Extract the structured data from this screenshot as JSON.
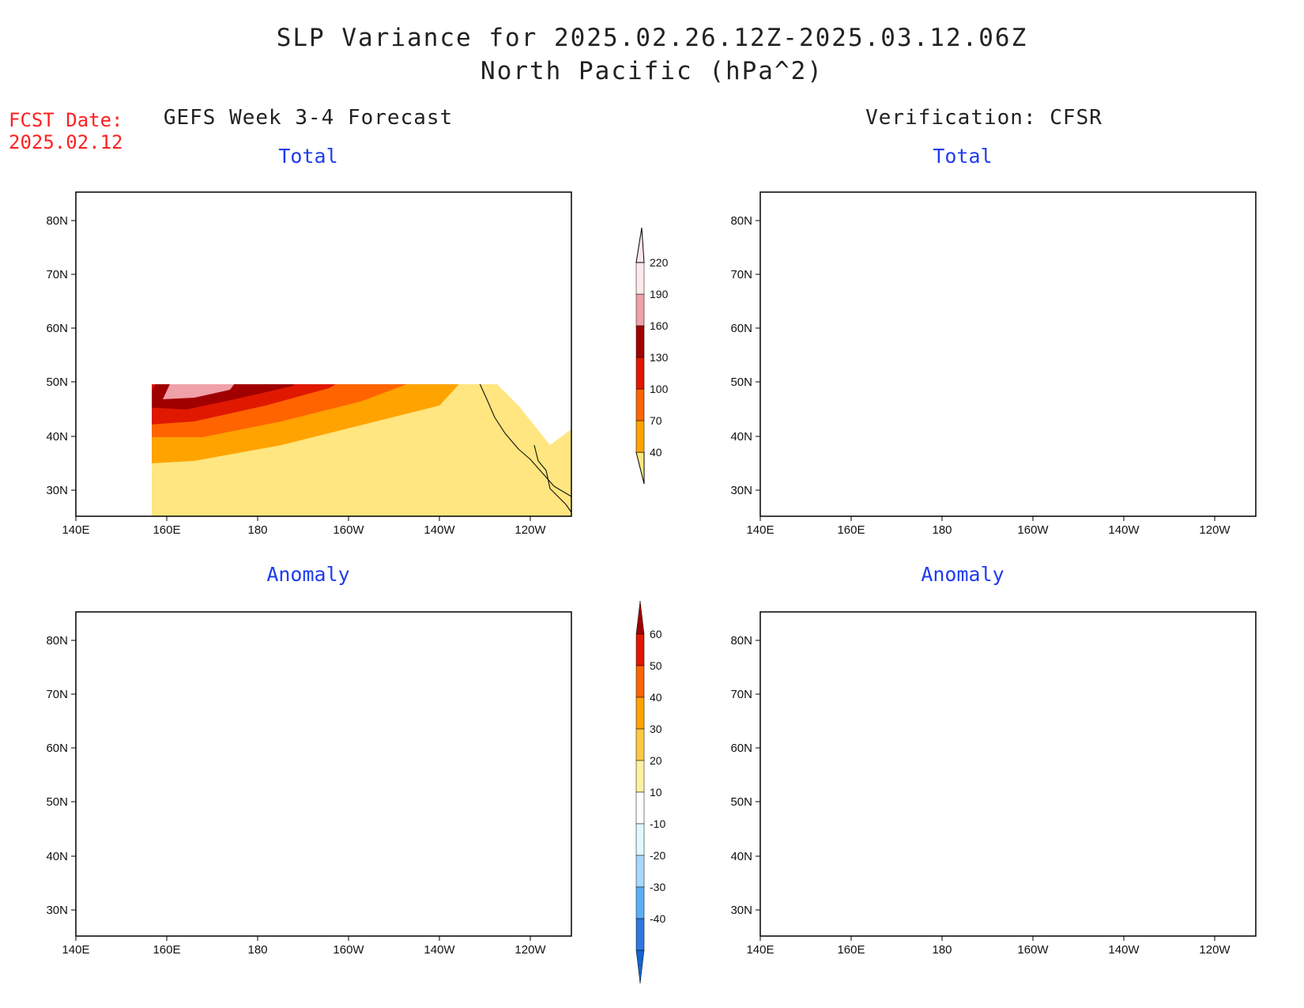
{
  "header": {
    "title_line1": "SLP Variance for 2025.02.26.12Z-2025.03.12.06Z",
    "title_line2": "North Pacific (hPa^2)",
    "fcst_label": "FCST Date:",
    "fcst_date": "2025.02.12"
  },
  "columns": {
    "left": "GEFS Week 3-4 Forecast",
    "right": "Verification: CFSR"
  },
  "panels": {
    "top_left_title": "Total",
    "top_right_title": "Total",
    "bottom_left_title": "Anomaly",
    "bottom_right_title": "Anomaly"
  },
  "axes": {
    "lon_ticks": [
      "140E",
      "160E",
      "180",
      "160W",
      "140W",
      "120W"
    ],
    "lat_ticks": [
      "80N",
      "70N",
      "60N",
      "50N",
      "40N",
      "30N"
    ]
  },
  "colorbars": {
    "total": {
      "levels": [
        "40",
        "70",
        "100",
        "130",
        "160",
        "190",
        "220"
      ],
      "colors": [
        "#ffe680",
        "#ffa300",
        "#ff6400",
        "#e01800",
        "#a00000",
        "#f0a0a8",
        "#fde8ea"
      ]
    },
    "anomaly": {
      "levels": [
        "60",
        "50",
        "40",
        "30",
        "20",
        "10",
        "-10",
        "-20",
        "-30",
        "-40"
      ],
      "colors": [
        "#a00000",
        "#e01800",
        "#ff6400",
        "#ffa300",
        "#ffc840",
        "#fff0a0",
        "#ffffff",
        "#e0f8ff",
        "#a8d8ff",
        "#5aaef5",
        "#2e78e0",
        "#1464d0"
      ]
    }
  }
}
